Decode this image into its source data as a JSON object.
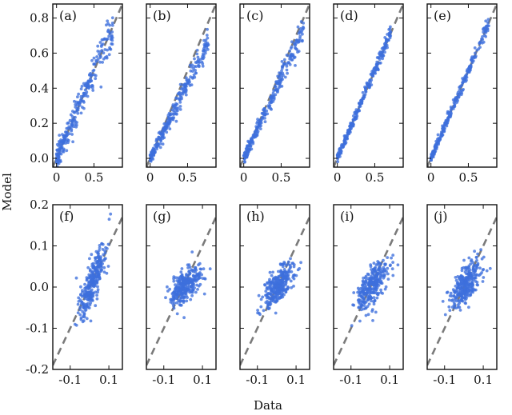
{
  "figure": {
    "xlabel": "Data",
    "ylabel": "Model"
  },
  "colors": {
    "points": "#3d6fdc",
    "diagonal": "#7a7a7a",
    "frame": "#111111"
  },
  "chart_data": [
    {
      "type": "scatter",
      "label": "(a)",
      "row": "top",
      "xlim": [
        -0.05,
        0.88
      ],
      "ylim": [
        -0.05,
        0.88
      ],
      "xticks": [
        "0",
        "0.5"
      ],
      "yticks": [
        "0.0",
        "0.2",
        "0.4",
        "0.6",
        "0.8"
      ],
      "x_max": 0.75,
      "noise": 0.045,
      "slope": 1.0,
      "diagonal": "y = x"
    },
    {
      "type": "scatter",
      "label": "(b)",
      "row": "top",
      "xlim": [
        -0.05,
        0.88
      ],
      "ylim": [
        -0.05,
        0.88
      ],
      "xticks": [
        "0",
        "0.5"
      ],
      "yticks": [],
      "x_max": 0.78,
      "noise": 0.03,
      "slope": 0.85,
      "diagonal": "y = x"
    },
    {
      "type": "scatter",
      "label": "(c)",
      "row": "top",
      "xlim": [
        -0.05,
        0.88
      ],
      "ylim": [
        -0.05,
        0.88
      ],
      "xticks": [
        "0",
        "0.5"
      ],
      "yticks": [],
      "x_max": 0.8,
      "noise": 0.028,
      "slope": 0.92,
      "diagonal": "y = x"
    },
    {
      "type": "scatter",
      "label": "(d)",
      "row": "top",
      "xlim": [
        -0.05,
        0.88
      ],
      "ylim": [
        -0.05,
        0.88
      ],
      "xticks": [
        "0",
        "0.5"
      ],
      "yticks": [],
      "x_max": 0.72,
      "noise": 0.018,
      "slope": 1.0,
      "diagonal": "y = x"
    },
    {
      "type": "scatter",
      "label": "(e)",
      "row": "top",
      "xlim": [
        -0.05,
        0.88
      ],
      "ylim": [
        -0.05,
        0.88
      ],
      "xticks": [
        "0",
        "0.5"
      ],
      "yticks": [],
      "x_max": 0.78,
      "noise": 0.018,
      "slope": 1.0,
      "diagonal": "y = x"
    },
    {
      "type": "scatter",
      "label": "(f)",
      "row": "bottom",
      "xlim": [
        -0.19,
        0.17
      ],
      "ylim": [
        -0.2,
        0.2
      ],
      "xticks": [
        "-0.1",
        "0.1"
      ],
      "yticks": [
        "-0.2",
        "-0.1",
        "0.0",
        "0.1",
        "0.2"
      ],
      "x_sd": 0.035,
      "noise": 0.025,
      "slope": 1.0,
      "diagonal": "y = x"
    },
    {
      "type": "scatter",
      "label": "(g)",
      "row": "bottom",
      "xlim": [
        -0.19,
        0.17
      ],
      "ylim": [
        -0.2,
        0.2
      ],
      "xticks": [
        "-0.1",
        "0.1"
      ],
      "yticks": [],
      "x_sd": 0.04,
      "noise": 0.018,
      "slope": 0.3,
      "diagonal": "y = x"
    },
    {
      "type": "scatter",
      "label": "(h)",
      "row": "bottom",
      "xlim": [
        -0.19,
        0.17
      ],
      "ylim": [
        -0.2,
        0.2
      ],
      "xticks": [
        "-0.1",
        "0.1"
      ],
      "yticks": [],
      "x_sd": 0.04,
      "noise": 0.02,
      "slope": 0.4,
      "diagonal": "y = x"
    },
    {
      "type": "scatter",
      "label": "(i)",
      "row": "bottom",
      "xlim": [
        -0.19,
        0.17
      ],
      "ylim": [
        -0.2,
        0.2
      ],
      "xticks": [
        "-0.1",
        "0.1"
      ],
      "yticks": [],
      "x_sd": 0.038,
      "noise": 0.025,
      "slope": 0.45,
      "diagonal": "y = x"
    },
    {
      "type": "scatter",
      "label": "(j)",
      "row": "bottom",
      "xlim": [
        -0.19,
        0.17
      ],
      "ylim": [
        -0.2,
        0.2
      ],
      "xticks": [
        "-0.1",
        "0.1"
      ],
      "yticks": [],
      "x_sd": 0.038,
      "noise": 0.022,
      "slope": 0.45,
      "diagonal": "y = x"
    }
  ]
}
